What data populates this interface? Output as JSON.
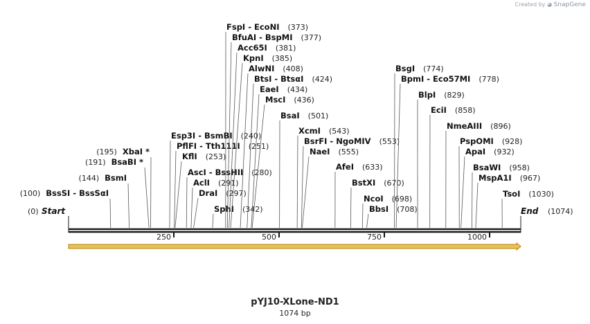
{
  "brand": {
    "created_by": "Created by",
    "name": "SnapGene"
  },
  "map_title": "pYJ10-XLone-ND1",
  "map_length_label": "1074 bp",
  "sequence_length": 1074,
  "axis_ticks": [
    {
      "pos": 250,
      "label": "250"
    },
    {
      "pos": 500,
      "label": "500"
    },
    {
      "pos": 750,
      "label": "750"
    },
    {
      "pos": 1000,
      "label": "1000"
    }
  ],
  "ends": {
    "start": {
      "name": "Start",
      "coord": "(0)"
    },
    "end": {
      "name": "End",
      "coord": "(1074)"
    }
  },
  "feature": {
    "name": "orf-arrow",
    "start": 1,
    "end": 1074,
    "color": "#e8c15a",
    "outline": "#b8860b"
  },
  "enzymes": [
    {
      "label": "BssSI - BssSαI",
      "pos": 100,
      "coord": "(100)",
      "side": "left",
      "row": 0
    },
    {
      "label": "BsmI",
      "pos": 144,
      "coord": "(144)",
      "side": "left",
      "row": 1
    },
    {
      "label": "BsaBI *",
      "pos": 191,
      "coord": "(191)",
      "side": "left",
      "row": 2
    },
    {
      "label": "XbaI *",
      "pos": 195,
      "coord": "(195)",
      "side": "left",
      "row": 3
    },
    {
      "label": "Esp3I - BsmBI",
      "pos": 240,
      "coord": "(240)",
      "side": "right",
      "row": 1
    },
    {
      "label": "PflFI - Tth111I",
      "pos": 251,
      "coord": "(251)",
      "side": "right",
      "row": 2
    },
    {
      "label": "KflI",
      "pos": 253,
      "coord": "(253)",
      "side": "right",
      "row": 3
    },
    {
      "label": "AscI - BssHII",
      "pos": 280,
      "coord": "(280)",
      "side": "right",
      "row": 4
    },
    {
      "label": "AclI",
      "pos": 291,
      "coord": "(291)",
      "side": "right",
      "row": 5
    },
    {
      "label": "DraI",
      "pos": 297,
      "coord": "(297)",
      "side": "right",
      "row": 6
    },
    {
      "label": "SphI",
      "pos": 342,
      "coord": "(342)",
      "side": "right",
      "row": 7
    },
    {
      "label": "FspI - EcoNI",
      "pos": 373,
      "coord": "(373)",
      "side": "right",
      "row": 8
    },
    {
      "label": "BfuAI - BspMI",
      "pos": 377,
      "coord": "(377)",
      "side": "right",
      "row": 9
    },
    {
      "label": "Acc65I",
      "pos": 381,
      "coord": "(381)",
      "side": "right",
      "row": 10
    },
    {
      "label": "KpnI",
      "pos": 385,
      "coord": "(385)",
      "side": "right",
      "row": 11
    },
    {
      "label": "AlwNI",
      "pos": 408,
      "coord": "(408)",
      "side": "right",
      "row": 12
    },
    {
      "label": "BtsI - BtsαI",
      "pos": 424,
      "coord": "(424)",
      "side": "right",
      "row": 13
    },
    {
      "label": "EaeI",
      "pos": 434,
      "coord": "(434)",
      "side": "right",
      "row": 14
    },
    {
      "label": "MscI",
      "pos": 436,
      "coord": "(436)",
      "side": "right",
      "row": 15
    },
    {
      "label": "BsaI",
      "pos": 501,
      "coord": "(501)",
      "side": "right",
      "row": 16
    },
    {
      "label": "XcmI",
      "pos": 543,
      "coord": "(543)",
      "side": "right",
      "row": 17
    },
    {
      "label": "BsrFI - NgoMIV",
      "pos": 553,
      "coord": "(553)",
      "side": "right",
      "row": 18
    },
    {
      "label": "NaeI",
      "pos": 555,
      "coord": "(555)",
      "side": "right",
      "row": 19
    },
    {
      "label": "AfeI",
      "pos": 633,
      "coord": "(633)",
      "side": "right",
      "row": 20
    },
    {
      "label": "BstXI",
      "pos": 670,
      "coord": "(670)",
      "side": "right",
      "row": 21
    },
    {
      "label": "NcoI",
      "pos": 698,
      "coord": "(698)",
      "side": "right",
      "row": 22
    },
    {
      "label": "BbsI",
      "pos": 708,
      "coord": "(708)",
      "side": "right",
      "row": 23
    },
    {
      "label": "BsgI",
      "pos": 774,
      "coord": "(774)",
      "side": "right",
      "row": 24
    },
    {
      "label": "BpmI - Eco57MI",
      "pos": 778,
      "coord": "(778)",
      "side": "right",
      "row": 25
    },
    {
      "label": "BlpI",
      "pos": 829,
      "coord": "(829)",
      "side": "right",
      "row": 26
    },
    {
      "label": "EciI",
      "pos": 858,
      "coord": "(858)",
      "side": "right",
      "row": 27
    },
    {
      "label": "NmeAIII",
      "pos": 896,
      "coord": "(896)",
      "side": "right",
      "row": 28
    },
    {
      "label": "PspOMI",
      "pos": 928,
      "coord": "(928)",
      "side": "right",
      "row": 29
    },
    {
      "label": "ApaI",
      "pos": 932,
      "coord": "(932)",
      "side": "right",
      "row": 30
    },
    {
      "label": "BsaWI",
      "pos": 958,
      "coord": "(958)",
      "side": "right",
      "row": 31
    },
    {
      "label": "MspA1I",
      "pos": 967,
      "coord": "(967)",
      "side": "right",
      "row": 32
    },
    {
      "label": "TsoI",
      "pos": 1030,
      "coord": "(1030)",
      "side": "right",
      "row": 33
    }
  ]
}
